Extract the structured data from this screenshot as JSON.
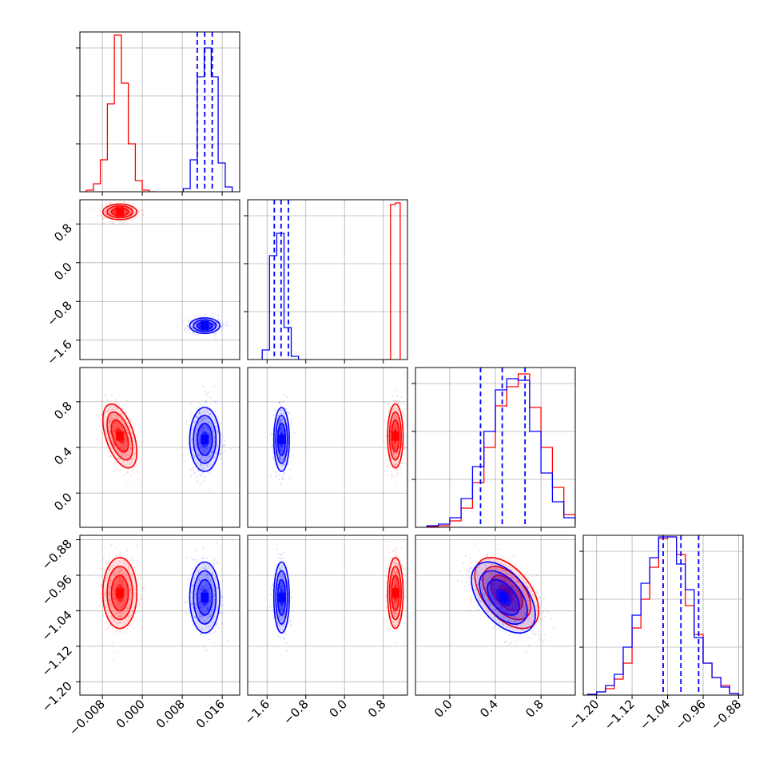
{
  "colors": {
    "series_a": "#ff0000",
    "series_b": "#0000ff",
    "grid": "#b0b0b0"
  },
  "chart_data": {
    "type": "corner",
    "grid": true,
    "series": [
      {
        "color": "#ff0000",
        "means": [
          -0.0045,
          1.05,
          0.5,
          -1.0
        ],
        "sds": [
          0.0017,
          0.08,
          0.14,
          0.04
        ],
        "correlations": [
          {
            "pair": [
              0,
              2
            ],
            "r": -0.5
          },
          {
            "pair": [
              2,
              3
            ],
            "r": -0.5
          }
        ],
        "histograms": [
          {
            "edges": [
              -0.0112,
              -0.0098,
              -0.0084,
              -0.007,
              -0.0056,
              -0.0042,
              -0.0028,
              -0.0014,
              0.0,
              0.0014,
              0.0028
            ],
            "heights": [
              0.01,
              0.05,
              0.2,
              0.55,
              0.98,
              0.68,
              0.3,
              0.07,
              0.01,
              0.0
            ]
          },
          {
            "edges": [
              0.85,
              0.95,
              1.05,
              1.15
            ],
            "heights": [
              0.0,
              0.97,
              0.98
            ]
          },
          {
            "edges": [
              -0.2,
              -0.1,
              0.0,
              0.1,
              0.2,
              0.3,
              0.4,
              0.5,
              0.6,
              0.7,
              0.8,
              0.9,
              1.0,
              1.1,
              1.2
            ],
            "heights": [
              0.005,
              0.01,
              0.04,
              0.12,
              0.28,
              0.5,
              0.76,
              0.88,
              0.96,
              0.75,
              0.5,
              0.25,
              0.08,
              0.02
            ]
          },
          {
            "edges": [
              -1.22,
              -1.2,
              -1.18,
              -1.16,
              -1.14,
              -1.12,
              -1.1,
              -1.08,
              -1.06,
              -1.04,
              -1.02,
              -1.0,
              -0.98,
              -0.96,
              -0.94,
              -0.92,
              -0.9,
              -0.88
            ],
            "heights": [
              0.005,
              0.02,
              0.04,
              0.1,
              0.2,
              0.42,
              0.6,
              0.8,
              0.98,
              0.99,
              0.88,
              0.56,
              0.38,
              0.2,
              0.11,
              0.06,
              0.01
            ]
          }
        ]
      },
      {
        "color": "#0000ff",
        "means": [
          0.0125,
          -1.3,
          0.47,
          -1.01
        ],
        "sds": [
          0.0015,
          0.08,
          0.14,
          0.04
        ],
        "correlations": [
          {
            "pair": [
              2,
              3
            ],
            "r": -0.5
          }
        ],
        "quantiles": [
          [
            0.011,
            0.0125,
            0.014
          ],
          [
            -1.45,
            -1.31,
            -1.16
          ],
          [
            0.27,
            0.46,
            0.66
          ],
          [
            -1.05,
            -1.01,
            -0.97
          ]
        ],
        "histograms": [
          {
            "edges": [
              0.0082,
              0.0096,
              0.011,
              0.0124,
              0.0138,
              0.0152,
              0.0166,
              0.018
            ],
            "heights": [
              0.02,
              0.2,
              0.72,
              0.9,
              0.72,
              0.18,
              0.03
            ]
          },
          {
            "edges": [
              -1.7,
              -1.55,
              -1.4,
              -1.25,
              -1.1,
              -0.95
            ],
            "heights": [
              0.06,
              0.65,
              0.79,
              0.2,
              0.02
            ]
          },
          {
            "edges": [
              -0.2,
              -0.1,
              0.0,
              0.1,
              0.2,
              0.3,
              0.4,
              0.5,
              0.6,
              0.7,
              0.8,
              0.9,
              1.0,
              1.1,
              1.2
            ],
            "heights": [
              0.01,
              0.02,
              0.06,
              0.18,
              0.38,
              0.6,
              0.86,
              0.93,
              0.92,
              0.6,
              0.34,
              0.16,
              0.06,
              0.02
            ]
          },
          {
            "edges": [
              -1.22,
              -1.2,
              -1.18,
              -1.16,
              -1.14,
              -1.12,
              -1.1,
              -1.08,
              -1.06,
              -1.04,
              -1.02,
              -1.0,
              -0.98,
              -0.96,
              -0.94,
              -0.92,
              -0.9,
              -0.88
            ],
            "heights": [
              0.005,
              0.02,
              0.06,
              0.13,
              0.3,
              0.5,
              0.7,
              0.86,
              0.99,
              0.99,
              0.82,
              0.66,
              0.36,
              0.2,
              0.11,
              0.05,
              0.01
            ]
          }
        ]
      }
    ],
    "axes": [
      {
        "range": [
          -0.0125,
          0.0195
        ],
        "ticks": [
          -0.008,
          0.0,
          0.008,
          0.016
        ],
        "tick_labels": [
          "−0.008",
          "0.000",
          "0.008",
          "0.016"
        ]
      },
      {
        "range": [
          -2.0,
          1.3
        ],
        "ticks": [
          -1.6,
          -0.8,
          0.0,
          0.8
        ],
        "tick_labels": [
          "−1.6",
          "−0.8",
          "0.0",
          "0.8"
        ]
      },
      {
        "range": [
          -0.3,
          1.1
        ],
        "ticks": [
          0.0,
          0.4,
          0.8
        ],
        "tick_labels": [
          "0.0",
          "0.4",
          "0.8"
        ]
      },
      {
        "range": [
          -1.23,
          -0.87
        ],
        "ticks": [
          -1.2,
          -1.12,
          -1.04,
          -0.96,
          -0.88
        ],
        "tick_labels": [
          "−1.20",
          "−1.12",
          "−1.04",
          "−0.96",
          "−0.88"
        ]
      }
    ]
  }
}
